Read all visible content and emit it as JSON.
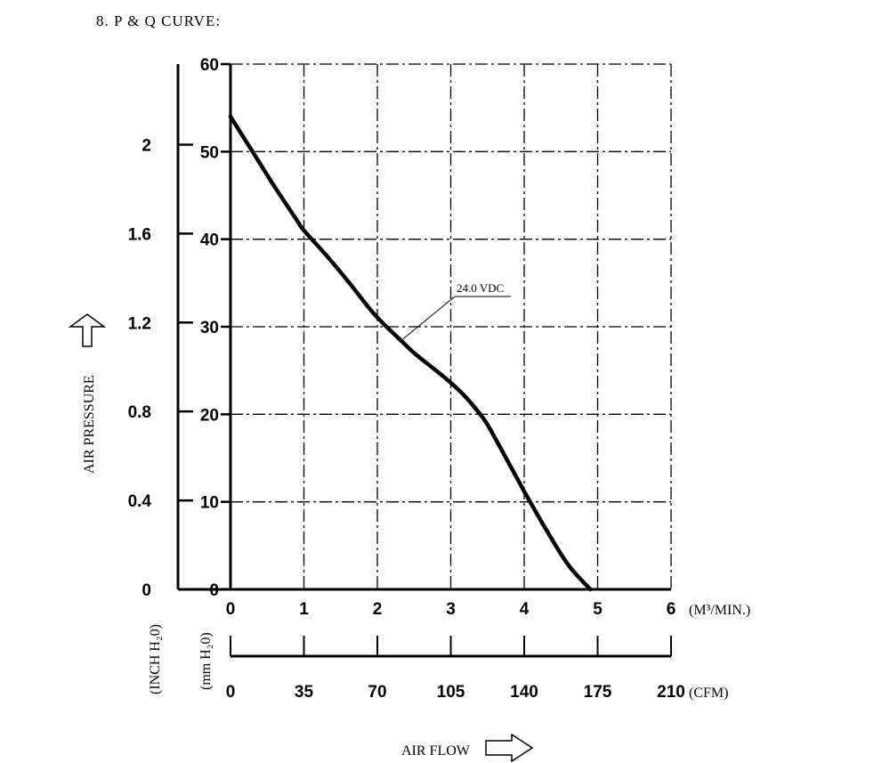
{
  "title": "8. P & Q CURVE:",
  "chart_data": {
    "type": "line",
    "title": "8. P & Q CURVE:",
    "x_axis": {
      "label": "AIR FLOW",
      "primary_unit": "(M³/MIN.)",
      "primary_ticks": [
        "0",
        "1",
        "2",
        "3",
        "4",
        "5",
        "6"
      ],
      "secondary_unit": "(CFM)",
      "secondary_ticks": [
        "0",
        "35",
        "70",
        "105",
        "140",
        "175",
        "210"
      ],
      "xlim": [
        0,
        6
      ]
    },
    "y_axis": {
      "label": "AIR PRESSURE",
      "primary_unit": "(mm H₂0)",
      "primary_ticks": [
        "0",
        "10",
        "20",
        "30",
        "40",
        "50",
        "60"
      ],
      "secondary_unit": "(INCH H₂0)",
      "secondary_ticks": [
        "0",
        "0.4",
        "0.8",
        "1.2",
        "1.6",
        "2"
      ],
      "secondary_tick_values_mm": [
        0,
        10.16,
        20.32,
        30.48,
        40.64,
        50.8
      ],
      "ylim": [
        0,
        60
      ]
    },
    "grid": true,
    "series": [
      {
        "name": "24.0 VDC",
        "color": "#000000",
        "x": [
          0,
          0.3,
          0.6,
          0.9,
          1.0,
          1.3,
          1.6,
          1.9,
          2.1,
          2.3,
          2.5,
          2.8,
          3.0,
          3.2,
          3.4,
          3.5,
          3.7,
          4.0,
          4.3,
          4.6,
          4.9
        ],
        "y": [
          54,
          50,
          46,
          42.2,
          41,
          38.2,
          35.2,
          32,
          30.2,
          28.6,
          27,
          25,
          23.6,
          22,
          20,
          18.8,
          15.8,
          11.2,
          6.8,
          2.8,
          0
        ]
      }
    ],
    "annotations": [
      {
        "text": "24.0 VDC",
        "x": 2.35,
        "y": 28.6
      }
    ]
  }
}
